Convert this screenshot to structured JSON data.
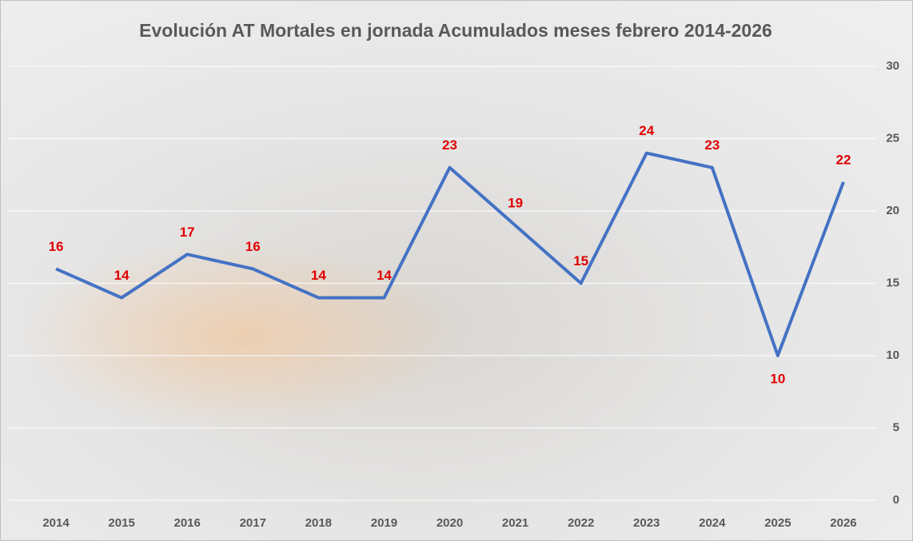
{
  "chart_data": {
    "type": "line",
    "title": "Evolución AT Mortales en jornada Acumulados meses febrero 2014-2026",
    "categories": [
      "2014",
      "2015",
      "2016",
      "2017",
      "2018",
      "2019",
      "2020",
      "2021",
      "2022",
      "2023",
      "2024",
      "2025",
      "2026"
    ],
    "series": [
      {
        "color": "#4472c4",
        "values": [
          16,
          14,
          17,
          16,
          14,
          14,
          23,
          19,
          15,
          24,
          23,
          10,
          22
        ]
      }
    ],
    "label_color": "#e00000",
    "ylim": [
      0,
      30
    ],
    "yticks": [
      0,
      5,
      10,
      15,
      20,
      25,
      30
    ],
    "grid": true
  }
}
